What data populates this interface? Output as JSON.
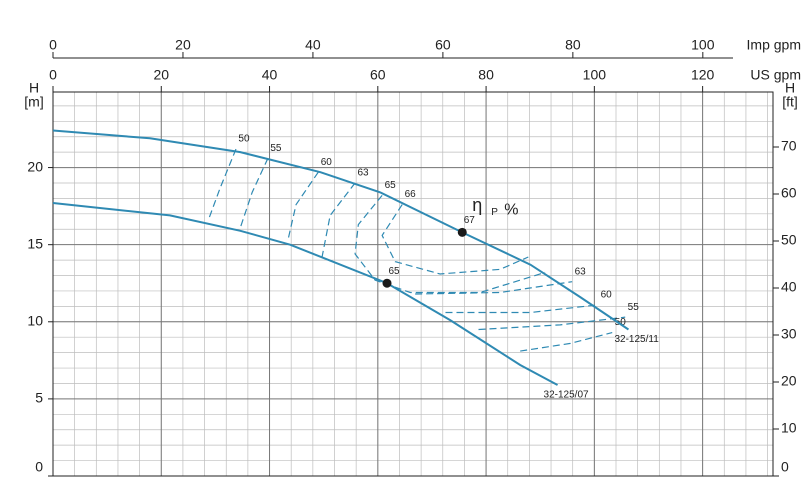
{
  "chart_data": {
    "type": "line",
    "x_label": "US gpm",
    "x2_label": "Imp gpm",
    "y_label": "H",
    "y_unit": "[m]",
    "y2_label": "H",
    "y2_unit": "[ft]",
    "xlim": [
      0,
      133
    ],
    "xticks": [
      0,
      20,
      40,
      60,
      80,
      100,
      120
    ],
    "x2lim": [
      0,
      110.8
    ],
    "x2ticks": [
      0,
      20,
      40,
      60,
      80,
      100
    ],
    "ylim": [
      0,
      24.9
    ],
    "yticks": [
      0,
      5,
      10,
      15,
      20
    ],
    "y2lim": [
      0,
      81.7
    ],
    "y2ticks": [
      0,
      10,
      20,
      30,
      40,
      50,
      60,
      70
    ],
    "x_minor_step": 4,
    "y_minor_step": 1,
    "grid": true,
    "color": "#2f8ab3",
    "series": [
      {
        "name": "32-125/11",
        "x": [
          0,
          17.9,
          34.6,
          49.4,
          60.4,
          75.6,
          88.2,
          97.4,
          106.3
        ],
        "values": [
          22.4,
          21.9,
          21.0,
          19.7,
          18.4,
          15.8,
          13.7,
          11.6,
          9.5
        ]
      },
      {
        "name": "32-125/07",
        "x": [
          0,
          21.6,
          34.6,
          43.8,
          61.7,
          73.4,
          86.3,
          93.2
        ],
        "values": [
          17.7,
          16.9,
          15.9,
          15.0,
          12.5,
          10.1,
          7.2,
          5.9
        ]
      }
    ],
    "efficiency_label": "η",
    "efficiency_sub": "P",
    "efficiency_unit": "%",
    "efficiency_contours": [
      {
        "label": "50",
        "x": [
          33.8,
          30.9,
          28.7
        ],
        "values": [
          21.2,
          18.7,
          16.6
        ]
      },
      {
        "label": "55",
        "x": [
          39.7,
          36.8,
          34.6
        ],
        "values": [
          20.6,
          18.4,
          16.1
        ]
      },
      {
        "label": "60",
        "x": [
          49.0,
          44.9,
          43.4
        ],
        "values": [
          19.7,
          17.6,
          15.3
        ]
      },
      {
        "label": "63",
        "x": [
          55.8,
          51.2,
          49.7
        ],
        "values": [
          19.0,
          16.9,
          14.2
        ]
      },
      {
        "label": "65",
        "x": [
          60.8,
          56.4,
          55.8,
          59.5,
          66.0,
          78.9,
          90.9
        ],
        "values": [
          18.2,
          16.3,
          14.4,
          12.7,
          11.9,
          11.9,
          13.2
        ]
      },
      {
        "label": "66",
        "x": [
          64.5,
          60.8,
          63.2,
          71.5,
          82.6,
          87.8
        ],
        "values": [
          17.6,
          15.6,
          13.9,
          13.1,
          13.4,
          14.2
        ]
      },
      {
        "label": "63",
        "x": [
          66.9,
          82.6,
          95.9
        ],
        "values": [
          11.8,
          11.9,
          12.6
        ]
      },
      {
        "label": "60",
        "x": [
          72.5,
          88.2,
          100.7
        ],
        "values": [
          10.6,
          10.6,
          11.1
        ]
      },
      {
        "label": "55",
        "x": [
          78.6,
          93.7,
          105.7
        ],
        "values": [
          9.5,
          9.8,
          10.3
        ]
      },
      {
        "label": "50",
        "x": [
          86.3,
          95.6,
          103.3
        ],
        "values": [
          8.1,
          8.6,
          9.3
        ]
      }
    ],
    "best_points": [
      {
        "label": "67",
        "x": 75.6,
        "value": 15.8
      },
      {
        "label": "65",
        "x": 61.7,
        "value": 12.5
      }
    ]
  }
}
